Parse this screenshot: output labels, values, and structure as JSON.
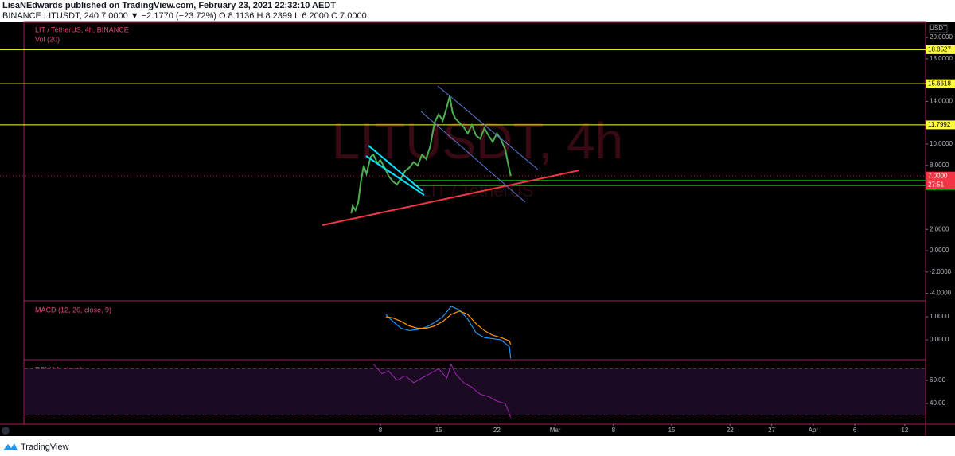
{
  "header": {
    "published": "LisaNEdwards published on TradingView.com, February 23, 2021 22:32:10 AEDT",
    "quote": "BINANCE:LITUSDT, 240  7.0000 ▼ −2.1770 (−23.72%) O:8.1136 H:8.2399 L:6.2000 C:7.0000"
  },
  "chart_data": {
    "type": "line",
    "legend": "LIT / TetherUS, 4h, BINANCE",
    "volume_legend": "Vol (20)",
    "watermark": "LITUSDT, 4h",
    "watermark_sub": "LIT / TetherUS",
    "currency": "USDT",
    "xlim": [
      "2020-12-24 12:00",
      "2021-04-14 05:00"
    ],
    "ylim": [
      -4.7,
      21.42
    ],
    "yticks": [
      {
        "value": 20,
        "label": "20.0000"
      },
      {
        "value": 18,
        "label": "18.0000"
      },
      {
        "value": 14,
        "label": "14.0000"
      },
      {
        "value": 10,
        "label": "10.0000"
      },
      {
        "value": 8,
        "label": "8.0000"
      },
      {
        "value": 2,
        "label": "2.0000"
      },
      {
        "value": 0,
        "label": "0.0000"
      },
      {
        "value": -2,
        "label": "-2.0000"
      },
      {
        "value": -4,
        "label": "-4.0000"
      }
    ],
    "xticks": [
      {
        "value": "2021-02-08 00:00",
        "label": "8"
      },
      {
        "value": "2021-02-15 00:00",
        "label": "15"
      },
      {
        "value": "2021-02-22 00:00",
        "label": "22"
      },
      {
        "value": "2021-03-01 00:00",
        "label": "Mar"
      },
      {
        "value": "2021-03-08 00:00",
        "label": "8"
      },
      {
        "value": "2021-03-15 00:00",
        "label": "15"
      },
      {
        "value": "2021-03-22 00:00",
        "label": "22"
      },
      {
        "value": "2021-03-27 00:00",
        "label": "27"
      },
      {
        "value": "2021-04-01 00:00",
        "label": "Apr"
      },
      {
        "value": "2021-04-06 00:00",
        "label": "6"
      },
      {
        "value": "2021-04-12 00:00",
        "label": "12"
      }
    ],
    "levels": [
      {
        "value": 18.8527,
        "color": "#ffff33",
        "text_color": "#000000"
      },
      {
        "value": 15.6618,
        "color": "#ffff33",
        "text_color": "#000000"
      },
      {
        "value": 11.7992,
        "color": "#ffff33",
        "text_color": "#000000"
      },
      {
        "value": 6.5764,
        "color": "#00e600",
        "text_color": "#000000"
      },
      {
        "value": 6.1106,
        "color": "#00e600",
        "text_color": "#000000"
      }
    ],
    "last_price": {
      "value": 7,
      "label": "7.0000",
      "color": "#f23645"
    },
    "countdown": "27:51",
    "series": [
      {
        "name": "LITUSDT",
        "color": "#4caf50",
        "x": [
          "2021-02-04 12:00",
          "2021-02-04 16:00",
          "2021-02-05 00:00",
          "2021-02-05 08:00",
          "2021-02-05 16:00",
          "2021-02-06 00:00",
          "2021-02-06 08:00",
          "2021-02-06 20:00",
          "2021-02-07 04:00",
          "2021-02-07 16:00",
          "2021-02-08 00:00",
          "2021-02-08 12:00",
          "2021-02-09 00:00",
          "2021-02-09 12:00",
          "2021-02-10 00:00",
          "2021-02-10 12:00",
          "2021-02-11 00:00",
          "2021-02-11 12:00",
          "2021-02-12 00:00",
          "2021-02-12 12:00",
          "2021-02-13 00:00",
          "2021-02-13 12:00",
          "2021-02-14 00:00",
          "2021-02-14 12:00",
          "2021-02-15 00:00",
          "2021-02-15 12:00",
          "2021-02-16 00:00",
          "2021-02-16 08:00",
          "2021-02-16 16:00",
          "2021-02-17 00:00",
          "2021-02-17 12:00",
          "2021-02-18 00:00",
          "2021-02-18 12:00",
          "2021-02-19 00:00",
          "2021-02-19 12:00",
          "2021-02-20 00:00",
          "2021-02-20 12:00",
          "2021-02-21 00:00",
          "2021-02-21 12:00",
          "2021-02-22 00:00",
          "2021-02-22 12:00",
          "2021-02-23 00:00",
          "2021-02-23 08:00",
          "2021-02-23 16:00"
        ],
        "values": [
          3.5,
          4.2,
          3.8,
          4.5,
          6.5,
          8.0,
          7.2,
          8.8,
          9.0,
          8.2,
          8.5,
          7.8,
          7.0,
          6.5,
          6.2,
          6.8,
          7.5,
          7.8,
          8.3,
          8.0,
          9.0,
          8.6,
          9.8,
          12.0,
          12.8,
          12.2,
          13.5,
          14.5,
          13.0,
          12.4,
          12.0,
          11.6,
          11.0,
          11.8,
          10.8,
          10.5,
          11.5,
          10.8,
          10.2,
          11.0,
          10.4,
          9.5,
          8.2,
          7.0
        ]
      }
    ],
    "macd": {
      "title": "MACD (12, 26, close, 9)",
      "ylim": [
        -0.86,
        1.69
      ],
      "yticks": [
        {
          "value": 1,
          "label": "1.0000"
        },
        {
          "value": 0,
          "label": "0.0000"
        }
      ],
      "x": [
        "2021-02-08 16:00",
        "2021-02-09 12:00",
        "2021-02-10 12:00",
        "2021-02-11 12:00",
        "2021-02-12 12:00",
        "2021-02-13 12:00",
        "2021-02-14 12:00",
        "2021-02-15 12:00",
        "2021-02-16 12:00",
        "2021-02-17 12:00",
        "2021-02-18 12:00",
        "2021-02-19 12:00",
        "2021-02-20 12:00",
        "2021-02-21 12:00",
        "2021-02-22 12:00",
        "2021-02-23 12:00",
        "2021-02-23 16:00"
      ],
      "series": [
        {
          "name": "MACD",
          "color": "#2196f3",
          "values": [
            1.1,
            0.8,
            0.5,
            0.4,
            0.45,
            0.55,
            0.75,
            1.0,
            1.45,
            1.3,
            0.9,
            0.3,
            0.1,
            0.05,
            0.0,
            -0.3,
            -0.8
          ]
        },
        {
          "name": "Signal",
          "color": "#ff9800",
          "values": [
            1.0,
            0.95,
            0.8,
            0.6,
            0.5,
            0.5,
            0.6,
            0.8,
            1.1,
            1.25,
            1.1,
            0.7,
            0.4,
            0.2,
            0.1,
            -0.05,
            -0.2
          ]
        }
      ]
    },
    "rsi": {
      "title": "RSI (14, close)",
      "ylim": [
        22.1,
        77.9
      ],
      "yticks": [
        {
          "value": 60,
          "label": "60.00"
        },
        {
          "value": 40,
          "label": "40.00"
        }
      ],
      "band": [
        30,
        70
      ],
      "color": "#9c27b0",
      "x": [
        "2021-02-07 04:00",
        "2021-02-07 16:00",
        "2021-02-08 04:00",
        "2021-02-09 00:00",
        "2021-02-10 00:00",
        "2021-02-11 00:00",
        "2021-02-12 00:00",
        "2021-02-13 00:00",
        "2021-02-14 00:00",
        "2021-02-15 00:00",
        "2021-02-16 00:00",
        "2021-02-16 12:00",
        "2021-02-17 00:00",
        "2021-02-18 00:00",
        "2021-02-19 00:00",
        "2021-02-20 00:00",
        "2021-02-21 00:00",
        "2021-02-22 00:00",
        "2021-02-23 00:00",
        "2021-02-23 16:00"
      ],
      "values": [
        74,
        70,
        66,
        68,
        60,
        64,
        58,
        62,
        66,
        70,
        62,
        74,
        66,
        58,
        54,
        48,
        46,
        42,
        40,
        28
      ]
    }
  },
  "footer": {
    "brand": "TradingView"
  }
}
